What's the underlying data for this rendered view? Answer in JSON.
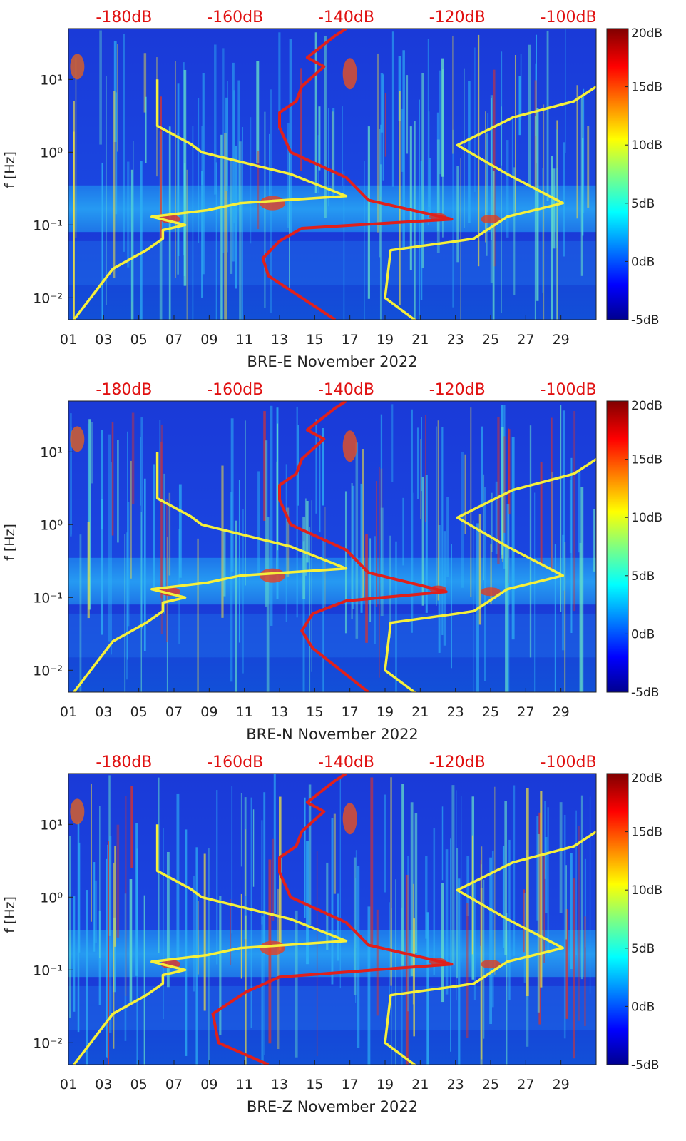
{
  "chart_data": [
    {
      "type": "heatmap",
      "title": "BRE-E November 2022",
      "xlabel": "BRE-E November 2022",
      "ylabel": "f [Hz]",
      "x_ticks": [
        "01",
        "03",
        "05",
        "07",
        "09",
        "11",
        "13",
        "15",
        "17",
        "19",
        "21",
        "23",
        "25",
        "27",
        "29"
      ],
      "x_range_days": [
        1,
        31
      ],
      "y_scale": "log",
      "y_range_hz": [
        0.005,
        50
      ],
      "y_ticks": [
        {
          "value": 0.01,
          "label": "10⁻²"
        },
        {
          "value": 0.1,
          "label": "10⁻¹"
        },
        {
          "value": 1,
          "label": "10⁰"
        },
        {
          "value": 10,
          "label": "10¹"
        }
      ],
      "top_axis_labels": [
        "-180dB",
        "-160dB",
        "-140dB",
        "-120dB",
        "-100dB"
      ],
      "top_axis_range_db": [
        -190,
        -95
      ],
      "colorbar": {
        "labels": [
          "20dB",
          "15dB",
          "10dB",
          "5dB",
          "0dB",
          "-5dB"
        ],
        "range_db": [
          -5,
          20
        ],
        "colormap": "jet"
      },
      "series": [
        {
          "name": "Model curve (yellow, left)",
          "color": "#f6f03a",
          "db": [
            -190,
            -186,
            -182,
            -176,
            -173,
            -173,
            -169,
            -175,
            -165,
            -159,
            -140,
            -150,
            -166,
            -168,
            -174,
            -174,
            -174
          ],
          "f": [
            0.004,
            0.01,
            0.025,
            0.045,
            0.065,
            0.085,
            0.1,
            0.13,
            0.16,
            0.2,
            0.25,
            0.5,
            1.0,
            1.3,
            2.3,
            5,
            10
          ]
        },
        {
          "name": "Model curve (yellow, right)",
          "color": "#f6f03a",
          "db": [
            -126,
            -133,
            -132,
            -120,
            -117,
            -111,
            -101,
            -111,
            -120,
            -110,
            -99,
            -93
          ],
          "f": [
            0.004,
            0.01,
            0.045,
            0.06,
            0.065,
            0.13,
            0.2,
            0.5,
            1.25,
            3,
            5,
            10
          ]
        },
        {
          "name": "Station noise curve (red)",
          "color": "#e0201c",
          "db": [
            -142,
            -154,
            -155,
            -152,
            -148,
            -121,
            -136,
            -140,
            -150,
            -152,
            -152,
            -149,
            -148,
            -144,
            -147,
            -142,
            -140
          ],
          "f": [
            0.005,
            0.02,
            0.035,
            0.06,
            0.09,
            0.12,
            0.22,
            0.45,
            1.0,
            2.2,
            3.5,
            5,
            8,
            15,
            20,
            40,
            50
          ]
        }
      ]
    },
    {
      "type": "heatmap",
      "title": "BRE-N November 2022",
      "xlabel": "BRE-N November 2022",
      "ylabel": "f [Hz]",
      "x_ticks": [
        "01",
        "03",
        "05",
        "07",
        "09",
        "11",
        "13",
        "15",
        "17",
        "19",
        "21",
        "23",
        "25",
        "27",
        "29"
      ],
      "x_range_days": [
        1,
        31
      ],
      "y_scale": "log",
      "y_range_hz": [
        0.005,
        50
      ],
      "y_ticks": [
        {
          "value": 0.01,
          "label": "10⁻²"
        },
        {
          "value": 0.1,
          "label": "10⁻¹"
        },
        {
          "value": 1,
          "label": "10⁰"
        },
        {
          "value": 10,
          "label": "10¹"
        }
      ],
      "top_axis_labels": [
        "-180dB",
        "-160dB",
        "-140dB",
        "-120dB",
        "-100dB"
      ],
      "top_axis_range_db": [
        -190,
        -95
      ],
      "colorbar": {
        "labels": [
          "20dB",
          "15dB",
          "10dB",
          "5dB",
          "0dB",
          "-5dB"
        ],
        "range_db": [
          -5,
          20
        ],
        "colormap": "jet"
      },
      "series": [
        {
          "name": "Model curve (yellow, left)",
          "color": "#f6f03a",
          "db": [
            -190,
            -186,
            -182,
            -176,
            -173,
            -173,
            -169,
            -175,
            -165,
            -159,
            -140,
            -150,
            -166,
            -168,
            -174,
            -174,
            -174
          ],
          "f": [
            0.004,
            0.01,
            0.025,
            0.045,
            0.065,
            0.085,
            0.1,
            0.13,
            0.16,
            0.2,
            0.25,
            0.5,
            1.0,
            1.3,
            2.3,
            5,
            10
          ]
        },
        {
          "name": "Model curve (yellow, right)",
          "color": "#f6f03a",
          "db": [
            -126,
            -133,
            -132,
            -120,
            -117,
            -111,
            -101,
            -111,
            -120,
            -110,
            -99,
            -93
          ],
          "f": [
            0.004,
            0.01,
            0.045,
            0.06,
            0.065,
            0.13,
            0.2,
            0.5,
            1.25,
            3,
            5,
            10
          ]
        },
        {
          "name": "Station noise curve (red)",
          "color": "#e0201c",
          "db": [
            -136,
            -146,
            -148,
            -146,
            -140,
            -122,
            -136,
            -140,
            -150,
            -152,
            -152,
            -149,
            -148,
            -144,
            -147,
            -142,
            -140
          ],
          "f": [
            0.005,
            0.02,
            0.035,
            0.06,
            0.09,
            0.12,
            0.22,
            0.45,
            1.0,
            2.2,
            3.5,
            5,
            8,
            15,
            20,
            40,
            50
          ]
        }
      ]
    },
    {
      "type": "heatmap",
      "title": "BRE-Z November 2022",
      "xlabel": "BRE-Z November 2022",
      "ylabel": "f [Hz]",
      "x_ticks": [
        "01",
        "03",
        "05",
        "07",
        "09",
        "11",
        "13",
        "15",
        "17",
        "19",
        "21",
        "23",
        "25",
        "27",
        "29"
      ],
      "x_range_days": [
        1,
        31
      ],
      "y_scale": "log",
      "y_range_hz": [
        0.005,
        50
      ],
      "y_ticks": [
        {
          "value": 0.01,
          "label": "10⁻²"
        },
        {
          "value": 0.1,
          "label": "10⁻¹"
        },
        {
          "value": 1,
          "label": "10⁰"
        },
        {
          "value": 10,
          "label": "10¹"
        }
      ],
      "top_axis_labels": [
        "-180dB",
        "-160dB",
        "-140dB",
        "-120dB",
        "-100dB"
      ],
      "top_axis_range_db": [
        -190,
        -95
      ],
      "colorbar": {
        "labels": [
          "20dB",
          "15dB",
          "10dB",
          "5dB",
          "0dB",
          "-5dB"
        ],
        "range_db": [
          -5,
          20
        ],
        "colormap": "jet"
      },
      "series": [
        {
          "name": "Model curve (yellow, left)",
          "color": "#f6f03a",
          "db": [
            -190,
            -186,
            -182,
            -176,
            -173,
            -173,
            -169,
            -175,
            -165,
            -159,
            -140,
            -150,
            -166,
            -168,
            -174,
            -174,
            -174
          ],
          "f": [
            0.004,
            0.01,
            0.025,
            0.045,
            0.065,
            0.085,
            0.1,
            0.13,
            0.16,
            0.2,
            0.25,
            0.5,
            1.0,
            1.3,
            2.3,
            5,
            10
          ]
        },
        {
          "name": "Model curve (yellow, right)",
          "color": "#f6f03a",
          "db": [
            -126,
            -133,
            -132,
            -120,
            -117,
            -111,
            -101,
            -111,
            -120,
            -110,
            -99,
            -93
          ],
          "f": [
            0.004,
            0.01,
            0.045,
            0.06,
            0.065,
            0.13,
            0.2,
            0.5,
            1.25,
            3,
            5,
            10
          ]
        },
        {
          "name": "Station noise curve (red)",
          "color": "#e0201c",
          "db": [
            -154,
            -163,
            -164,
            -158,
            -152,
            -121,
            -136,
            -140,
            -150,
            -152,
            -152,
            -149,
            -148,
            -144,
            -147,
            -142,
            -140
          ],
          "f": [
            0.005,
            0.01,
            0.025,
            0.05,
            0.08,
            0.12,
            0.22,
            0.45,
            1.0,
            2.2,
            3.5,
            5,
            8,
            15,
            20,
            40,
            50
          ]
        }
      ]
    }
  ]
}
